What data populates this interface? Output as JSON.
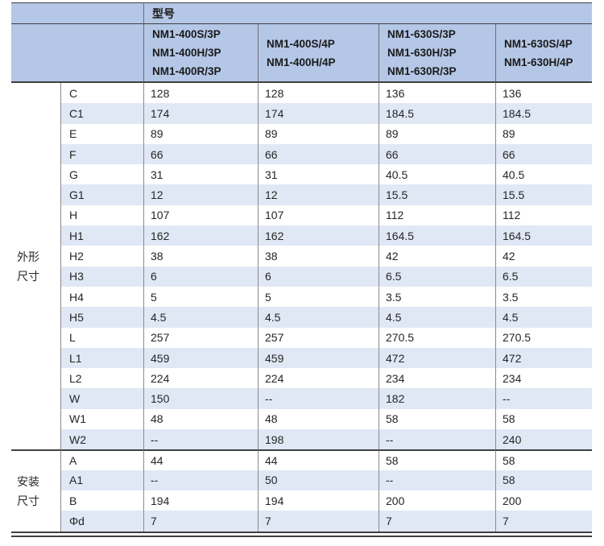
{
  "header": {
    "model_label": "型号",
    "columns": [
      {
        "models": [
          "NM1-400S/3P",
          "NM1-400H/3P",
          "NM1-400R/3P"
        ]
      },
      {
        "models": [
          "NM1-400S/4P",
          "NM1-400H/4P"
        ]
      },
      {
        "models": [
          "NM1-630S/3P",
          "NM1-630H/3P",
          "NM1-630R/3P"
        ]
      },
      {
        "models": [
          "NM1-630S/4P",
          "NM1-630H/4P"
        ]
      }
    ]
  },
  "groups": [
    {
      "label": "外形尺寸",
      "label_lines": [
        "外形",
        "尺寸"
      ],
      "rows": [
        {
          "dim": "C",
          "values": [
            "128",
            "128",
            "136",
            "136"
          ]
        },
        {
          "dim": "C1",
          "values": [
            "174",
            "174",
            "184.5",
            "184.5"
          ]
        },
        {
          "dim": "E",
          "values": [
            "89",
            "89",
            "89",
            "89"
          ]
        },
        {
          "dim": "F",
          "values": [
            "66",
            "66",
            "66",
            "66"
          ]
        },
        {
          "dim": "G",
          "values": [
            "31",
            "31",
            "40.5",
            "40.5"
          ]
        },
        {
          "dim": "G1",
          "values": [
            "12",
            "12",
            "15.5",
            "15.5"
          ]
        },
        {
          "dim": "H",
          "values": [
            "107",
            "107",
            "112",
            "112"
          ]
        },
        {
          "dim": "H1",
          "values": [
            "162",
            "162",
            "164.5",
            "164.5"
          ]
        },
        {
          "dim": "H2",
          "values": [
            "38",
            "38",
            "42",
            "42"
          ]
        },
        {
          "dim": "H3",
          "values": [
            "6",
            "6",
            "6.5",
            "6.5"
          ]
        },
        {
          "dim": "H4",
          "values": [
            "5",
            "5",
            "3.5",
            "3.5"
          ]
        },
        {
          "dim": "H5",
          "values": [
            "4.5",
            "4.5",
            "4.5",
            "4.5"
          ]
        },
        {
          "dim": "L",
          "values": [
            "257",
            "257",
            "270.5",
            "270.5"
          ]
        },
        {
          "dim": "L1",
          "values": [
            "459",
            "459",
            "472",
            "472"
          ]
        },
        {
          "dim": "L2",
          "values": [
            "224",
            "224",
            "234",
            "234"
          ]
        },
        {
          "dim": "W",
          "values": [
            "150",
            "--",
            "182",
            "--"
          ]
        },
        {
          "dim": "W1",
          "values": [
            "48",
            "48",
            "58",
            "58"
          ]
        },
        {
          "dim": "W2",
          "values": [
            "--",
            "198",
            "--",
            "240"
          ]
        }
      ]
    },
    {
      "label": "安装尺寸",
      "label_lines": [
        "安装",
        "尺寸"
      ],
      "rows": [
        {
          "dim": "A",
          "values": [
            "44",
            "44",
            "58",
            "58"
          ]
        },
        {
          "dim": "A1",
          "values": [
            "--",
            "50",
            "--",
            "58"
          ]
        },
        {
          "dim": "B",
          "values": [
            "194",
            "194",
            "200",
            "200"
          ]
        },
        {
          "dim": "Φd",
          "values": [
            "7",
            "7",
            "7",
            "7"
          ]
        }
      ]
    }
  ],
  "colors": {
    "header_bg": "#b4c7e6",
    "stripe_bg": "#e0e8f5",
    "border_dark": "#404040",
    "border_light": "#8a8a8a",
    "text": "#262626"
  }
}
